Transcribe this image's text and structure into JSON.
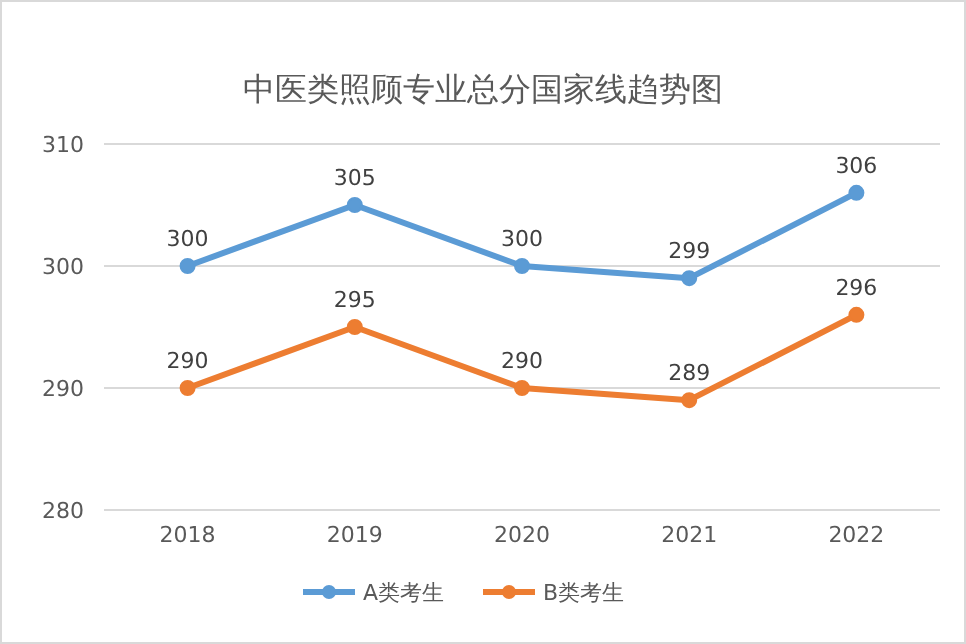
{
  "chart_data": {
    "type": "line",
    "title": "中医类照顾专业总分国家线趋势图",
    "categories": [
      "2018",
      "2019",
      "2020",
      "2021",
      "2022"
    ],
    "series": [
      {
        "name": "A类考生",
        "color": "#5b9bd5",
        "values": [
          300,
          305,
          300,
          299,
          306
        ]
      },
      {
        "name": "B类考生",
        "color": "#ed7d31",
        "values": [
          290,
          295,
          290,
          289,
          296
        ]
      }
    ],
    "ylim": [
      280,
      310
    ],
    "yticks": [
      280,
      290,
      300,
      310
    ],
    "grid": "y",
    "legend": "bottom",
    "marker": "circle",
    "data_labels": true
  }
}
